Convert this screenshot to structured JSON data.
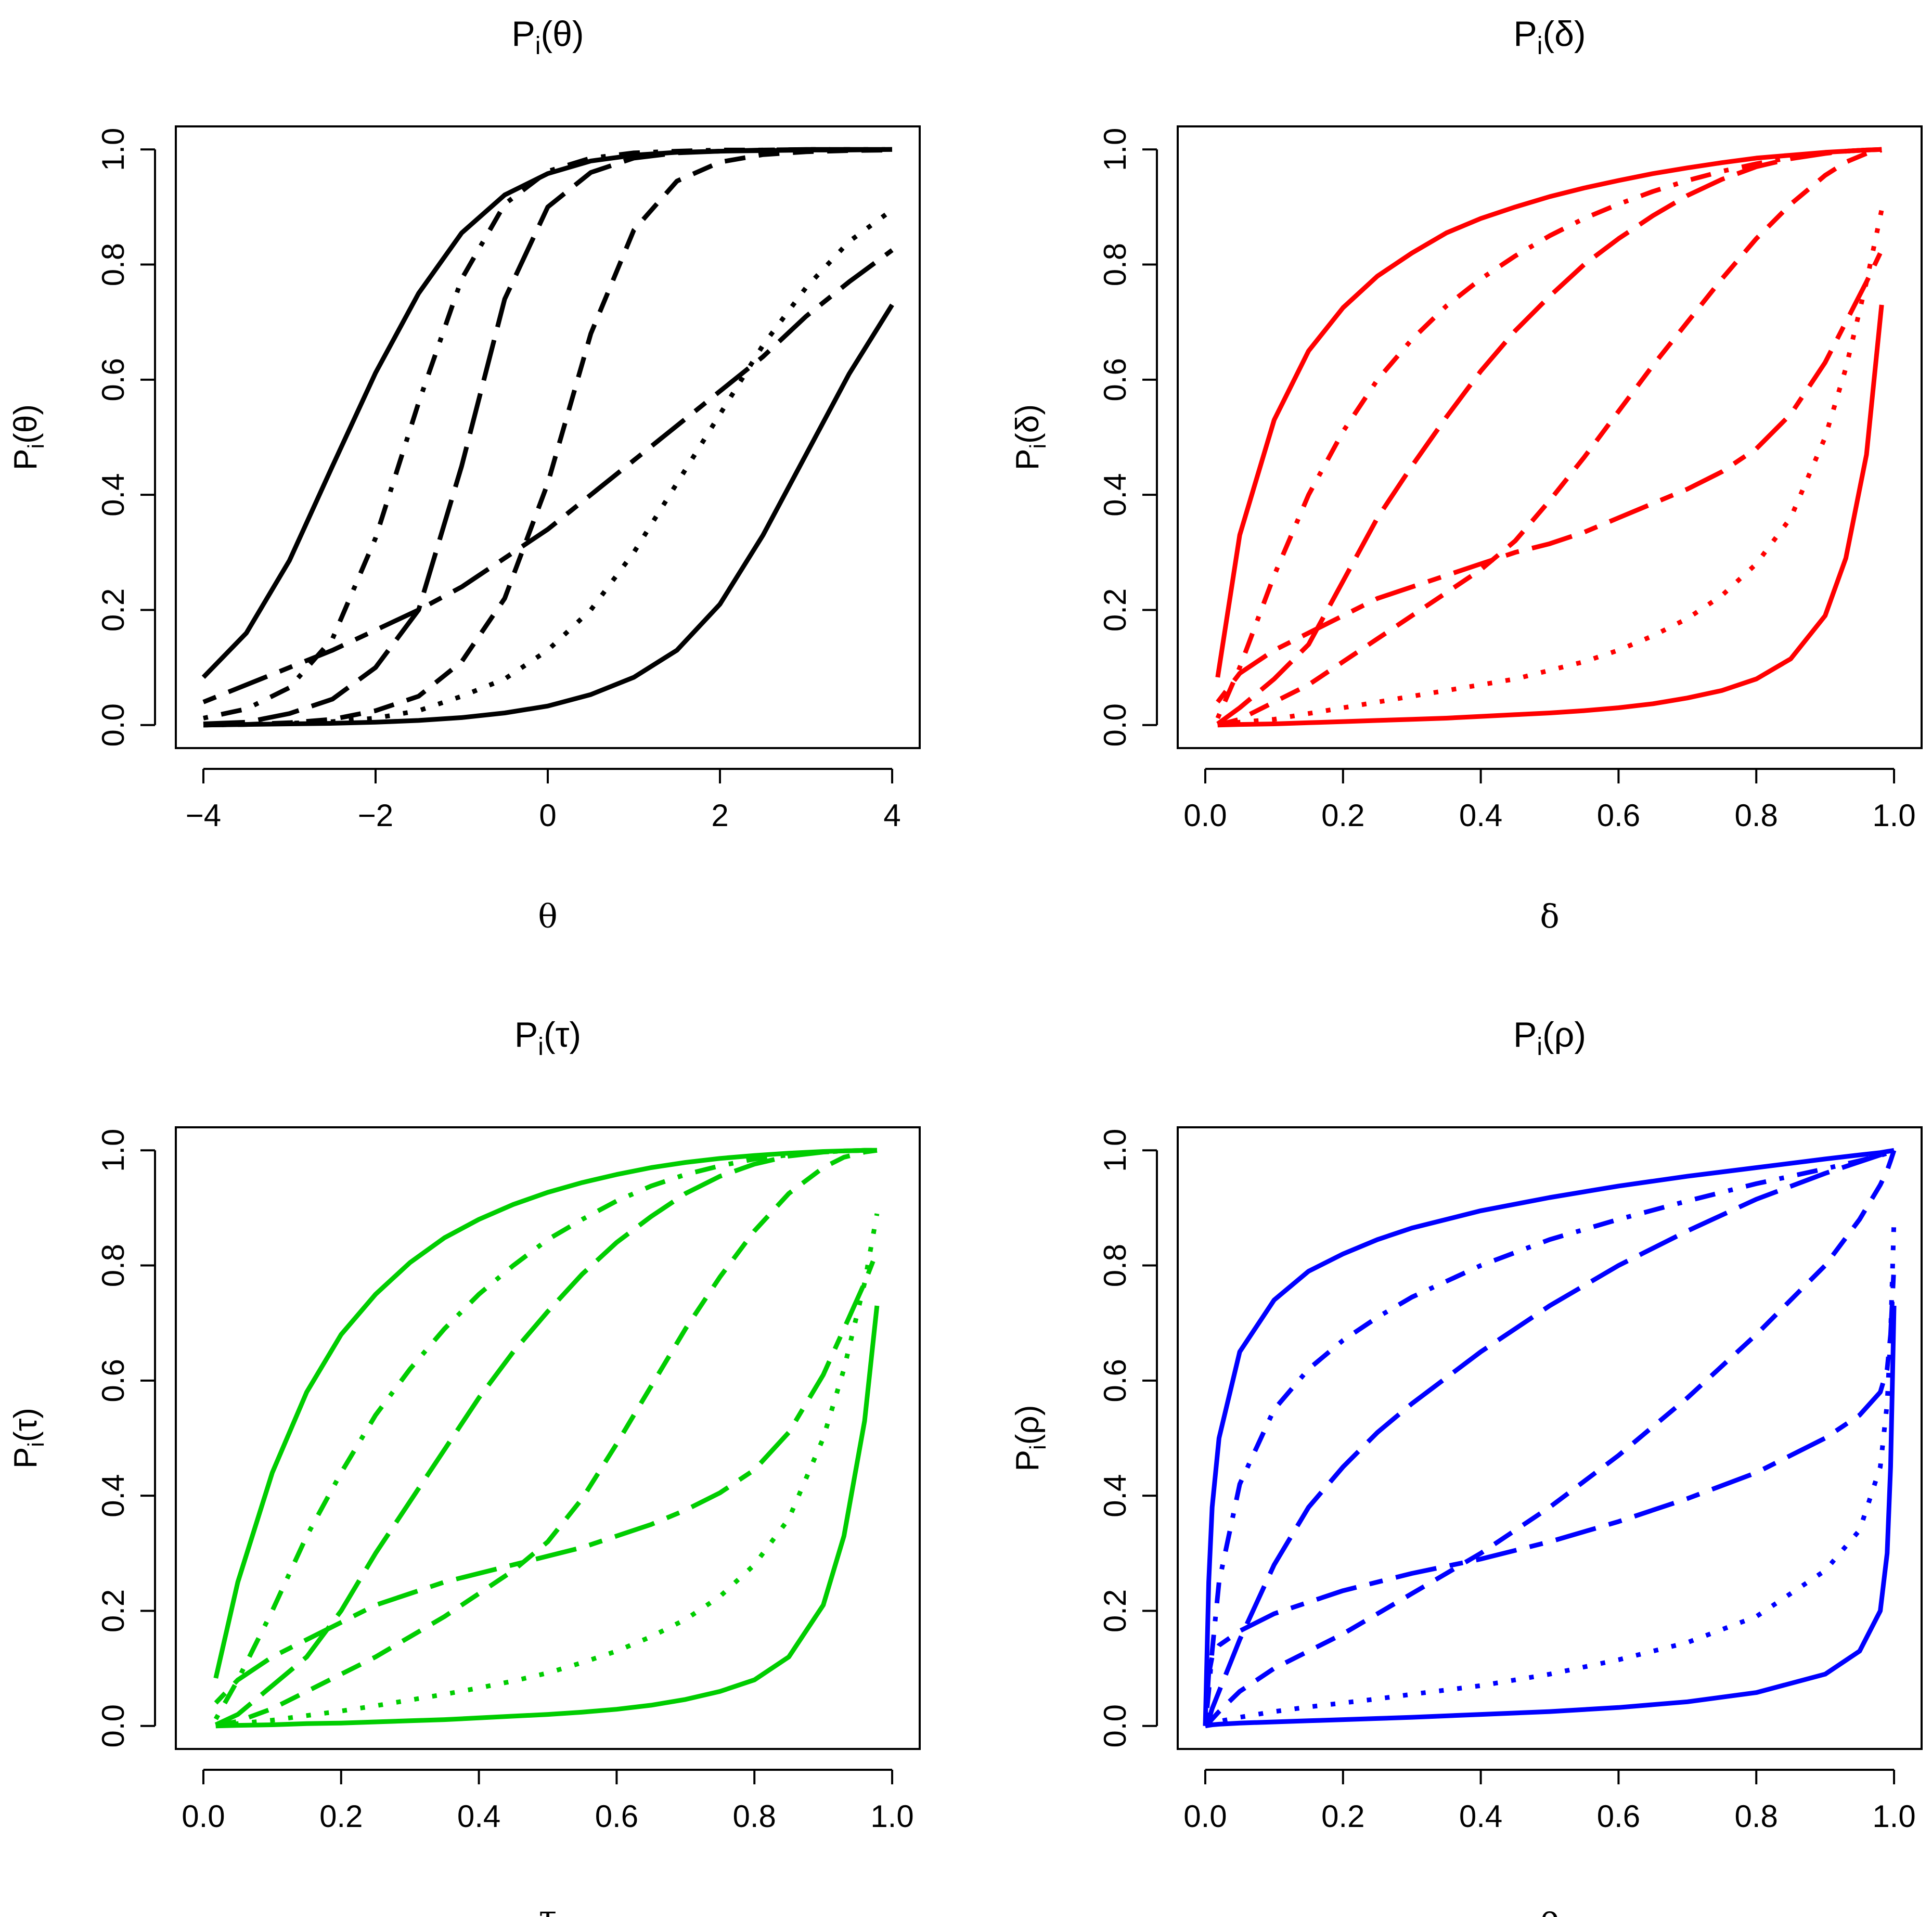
{
  "figure": {
    "layout": "2x2 grid of panels",
    "line_styles_legend_note": "Seven item characteristic curves per panel, distinguished by line type: solid (easy), dot-dash, long-dash, short-dash, two-dash, dotted, solid (hard)"
  },
  "chart_data": [
    {
      "id": "theta",
      "type": "line",
      "title_main": "P",
      "title_sub": "i",
      "title_arg": "(θ)",
      "ylabel_main": "P",
      "ylabel_sub": "i",
      "ylabel_arg": "(θ)",
      "xlabel": "θ",
      "color": "#000000",
      "xlim": [
        -4,
        4
      ],
      "ylim": [
        0,
        1
      ],
      "xticks": [
        -4,
        -2,
        0,
        2,
        4
      ],
      "xtick_labels": [
        "−4",
        "−2",
        "0",
        "2",
        "4"
      ],
      "yticks": [
        0,
        0.2,
        0.4,
        0.6,
        0.8,
        1.0
      ],
      "ytick_labels": [
        "0.0",
        "0.2",
        "0.4",
        "0.6",
        "0.8",
        "1.0"
      ],
      "grid": false,
      "x": [
        -4,
        -3.5,
        -3,
        -2.5,
        -2,
        -1.5,
        -1,
        -0.5,
        0,
        0.5,
        1,
        1.5,
        2,
        2.5,
        3,
        3.5,
        4
      ],
      "series": [
        {
          "name": "solid-easy",
          "dash": "solid",
          "values": [
            0.083,
            0.16,
            0.286,
            0.45,
            0.612,
            0.75,
            0.855,
            0.921,
            0.958,
            0.98,
            0.99,
            0.995,
            0.997,
            0.998,
            0.999,
            0.999,
            1.0
          ]
        },
        {
          "name": "dot-dash",
          "dash": "dotdash",
          "values": [
            0.012,
            0.028,
            0.065,
            0.15,
            0.325,
            0.56,
            0.775,
            0.905,
            0.962,
            0.985,
            0.994,
            0.997,
            0.999,
            0.999,
            1.0,
            1.0,
            1.0
          ]
        },
        {
          "name": "long-dash",
          "dash": "longdash",
          "values": [
            0.002,
            0.005,
            0.02,
            0.045,
            0.1,
            0.2,
            0.45,
            0.74,
            0.9,
            0.96,
            0.985,
            0.994,
            0.997,
            0.999,
            1.0,
            1.0,
            1.0
          ]
        },
        {
          "name": "short-dash",
          "dash": "dashed",
          "values": [
            0.0,
            0.001,
            0.004,
            0.01,
            0.025,
            0.05,
            0.11,
            0.22,
            0.42,
            0.68,
            0.86,
            0.945,
            0.978,
            0.991,
            0.996,
            0.998,
            0.999
          ]
        },
        {
          "name": "two-dash",
          "dash": "twodash",
          "values": [
            0.04,
            0.07,
            0.1,
            0.13,
            0.165,
            0.2,
            0.24,
            0.29,
            0.34,
            0.4,
            0.46,
            0.52,
            0.58,
            0.64,
            0.71,
            0.77,
            0.825
          ]
        },
        {
          "name": "dotted",
          "dash": "dotted",
          "values": [
            0.0,
            0.001,
            0.003,
            0.006,
            0.012,
            0.025,
            0.05,
            0.08,
            0.13,
            0.2,
            0.3,
            0.42,
            0.54,
            0.66,
            0.76,
            0.84,
            0.895
          ]
        },
        {
          "name": "solid-hard",
          "dash": "solid",
          "values": [
            0.0,
            0.001,
            0.002,
            0.003,
            0.005,
            0.008,
            0.013,
            0.021,
            0.033,
            0.053,
            0.083,
            0.13,
            0.21,
            0.33,
            0.47,
            0.61,
            0.73
          ]
        }
      ]
    },
    {
      "id": "delta",
      "type": "line",
      "title_main": "P",
      "title_sub": "i",
      "title_arg": "(δ)",
      "ylabel_main": "P",
      "ylabel_sub": "i",
      "ylabel_arg": "(δ)",
      "xlabel": "δ",
      "color": "#ff0000",
      "xlim": [
        0,
        1
      ],
      "ylim": [
        0,
        1
      ],
      "xticks": [
        0,
        0.2,
        0.4,
        0.6,
        0.8,
        1.0
      ],
      "xtick_labels": [
        "0.0",
        "0.2",
        "0.4",
        "0.6",
        "0.8",
        "1.0"
      ],
      "yticks": [
        0,
        0.2,
        0.4,
        0.6,
        0.8,
        1.0
      ],
      "ytick_labels": [
        "0.0",
        "0.2",
        "0.4",
        "0.6",
        "0.8",
        "1.0"
      ],
      "grid": false,
      "x": [
        0.018,
        0.05,
        0.1,
        0.15,
        0.2,
        0.25,
        0.3,
        0.35,
        0.4,
        0.45,
        0.5,
        0.55,
        0.6,
        0.65,
        0.7,
        0.75,
        0.8,
        0.85,
        0.9,
        0.93,
        0.96,
        0.982
      ],
      "series": [
        {
          "name": "solid-easy",
          "dash": "solid",
          "values": [
            0.083,
            0.33,
            0.53,
            0.65,
            0.725,
            0.78,
            0.82,
            0.855,
            0.88,
            0.9,
            0.918,
            0.933,
            0.946,
            0.958,
            0.968,
            0.977,
            0.985,
            0.99,
            0.995,
            0.997,
            0.999,
            1.0
          ]
        },
        {
          "name": "dot-dash",
          "dash": "dotdash",
          "values": [
            0.012,
            0.1,
            0.26,
            0.4,
            0.51,
            0.6,
            0.67,
            0.728,
            0.775,
            0.815,
            0.85,
            0.88,
            0.905,
            0.927,
            0.946,
            0.962,
            0.975,
            0.986,
            0.994,
            0.997,
            0.999,
            1.0
          ]
        },
        {
          "name": "long-dash",
          "dash": "longdash",
          "values": [
            0.002,
            0.03,
            0.08,
            0.14,
            0.25,
            0.36,
            0.45,
            0.535,
            0.615,
            0.685,
            0.745,
            0.8,
            0.845,
            0.885,
            0.92,
            0.948,
            0.97,
            0.984,
            0.993,
            0.997,
            0.999,
            1.0
          ]
        },
        {
          "name": "short-dash",
          "dash": "dashed",
          "values": [
            0.0,
            0.01,
            0.04,
            0.07,
            0.11,
            0.15,
            0.19,
            0.23,
            0.27,
            0.32,
            0.39,
            0.465,
            0.545,
            0.625,
            0.7,
            0.775,
            0.845,
            0.905,
            0.955,
            0.978,
            0.993,
            0.999
          ]
        },
        {
          "name": "two-dash",
          "dash": "twodash",
          "values": [
            0.04,
            0.09,
            0.13,
            0.16,
            0.19,
            0.22,
            0.24,
            0.26,
            0.28,
            0.3,
            0.315,
            0.335,
            0.36,
            0.385,
            0.41,
            0.44,
            0.48,
            0.54,
            0.63,
            0.7,
            0.77,
            0.825
          ]
        },
        {
          "name": "dotted",
          "dash": "dotted",
          "values": [
            0.0,
            0.005,
            0.01,
            0.02,
            0.03,
            0.04,
            0.05,
            0.06,
            0.07,
            0.08,
            0.095,
            0.11,
            0.13,
            0.155,
            0.185,
            0.225,
            0.28,
            0.36,
            0.5,
            0.62,
            0.77,
            0.895
          ]
        },
        {
          "name": "solid-hard",
          "dash": "solid",
          "values": [
            0.0,
            0.001,
            0.002,
            0.004,
            0.006,
            0.008,
            0.01,
            0.012,
            0.015,
            0.018,
            0.021,
            0.025,
            0.03,
            0.037,
            0.047,
            0.06,
            0.08,
            0.115,
            0.19,
            0.29,
            0.47,
            0.73
          ]
        }
      ]
    },
    {
      "id": "tau",
      "type": "line",
      "title_main": "P",
      "title_sub": "i",
      "title_arg": "(τ)",
      "ylabel_main": "P",
      "ylabel_sub": "i",
      "ylabel_arg": "(τ)",
      "xlabel": "τ",
      "color": "#00cd00",
      "xlim": [
        0,
        1
      ],
      "ylim": [
        0,
        1
      ],
      "xticks": [
        0,
        0.2,
        0.4,
        0.6,
        0.8,
        1.0
      ],
      "xtick_labels": [
        "0.0",
        "0.2",
        "0.4",
        "0.6",
        "0.8",
        "1.0"
      ],
      "yticks": [
        0,
        0.2,
        0.4,
        0.6,
        0.8,
        1.0
      ],
      "ytick_labels": [
        "0.0",
        "0.2",
        "0.4",
        "0.6",
        "0.8",
        "1.0"
      ],
      "grid": false,
      "x": [
        0.018,
        0.05,
        0.1,
        0.15,
        0.2,
        0.25,
        0.3,
        0.35,
        0.4,
        0.45,
        0.5,
        0.55,
        0.6,
        0.65,
        0.7,
        0.75,
        0.8,
        0.85,
        0.9,
        0.93,
        0.96,
        0.978
      ],
      "series": [
        {
          "name": "solid-easy",
          "dash": "solid",
          "values": [
            0.083,
            0.25,
            0.44,
            0.58,
            0.68,
            0.75,
            0.805,
            0.848,
            0.88,
            0.906,
            0.927,
            0.944,
            0.958,
            0.97,
            0.979,
            0.986,
            0.991,
            0.995,
            0.998,
            0.999,
            1.0,
            1.0
          ]
        },
        {
          "name": "dot-dash",
          "dash": "dotdash",
          "values": [
            0.012,
            0.08,
            0.2,
            0.33,
            0.44,
            0.54,
            0.62,
            0.69,
            0.75,
            0.8,
            0.845,
            0.88,
            0.912,
            0.938,
            0.958,
            0.973,
            0.985,
            0.992,
            0.997,
            0.999,
            1.0,
            1.0
          ]
        },
        {
          "name": "long-dash",
          "dash": "longdash",
          "values": [
            0.002,
            0.02,
            0.07,
            0.12,
            0.2,
            0.3,
            0.39,
            0.48,
            0.57,
            0.65,
            0.72,
            0.785,
            0.84,
            0.885,
            0.925,
            0.955,
            0.976,
            0.99,
            0.997,
            0.999,
            1.0,
            1.0
          ]
        },
        {
          "name": "short-dash",
          "dash": "dashed",
          "values": [
            0.0,
            0.008,
            0.03,
            0.06,
            0.09,
            0.12,
            0.155,
            0.19,
            0.23,
            0.27,
            0.32,
            0.395,
            0.49,
            0.59,
            0.69,
            0.78,
            0.86,
            0.925,
            0.97,
            0.988,
            0.997,
            1.0
          ]
        },
        {
          "name": "two-dash",
          "dash": "twodash",
          "values": [
            0.04,
            0.08,
            0.12,
            0.15,
            0.18,
            0.21,
            0.23,
            0.25,
            0.265,
            0.28,
            0.295,
            0.31,
            0.33,
            0.35,
            0.375,
            0.405,
            0.445,
            0.51,
            0.61,
            0.69,
            0.77,
            0.825
          ]
        },
        {
          "name": "dotted",
          "dash": "dotted",
          "values": [
            0.0,
            0.004,
            0.01,
            0.018,
            0.026,
            0.035,
            0.045,
            0.055,
            0.066,
            0.078,
            0.092,
            0.11,
            0.13,
            0.155,
            0.185,
            0.225,
            0.28,
            0.36,
            0.5,
            0.62,
            0.77,
            0.89
          ]
        },
        {
          "name": "solid-hard",
          "dash": "solid",
          "values": [
            0.0,
            0.001,
            0.002,
            0.004,
            0.005,
            0.007,
            0.009,
            0.011,
            0.014,
            0.017,
            0.02,
            0.024,
            0.029,
            0.036,
            0.046,
            0.06,
            0.08,
            0.12,
            0.21,
            0.33,
            0.53,
            0.73
          ]
        }
      ]
    },
    {
      "id": "rho",
      "type": "line",
      "title_main": "P",
      "title_sub": "i",
      "title_arg": "(ρ)",
      "ylabel_main": "P",
      "ylabel_sub": "i",
      "ylabel_arg": "(ρ)",
      "xlabel": "ρ",
      "color": "#0000ff",
      "xlim": [
        0,
        1
      ],
      "ylim": [
        0,
        1
      ],
      "xticks": [
        0,
        0.2,
        0.4,
        0.6,
        0.8,
        1.0
      ],
      "xtick_labels": [
        "0.0",
        "0.2",
        "0.4",
        "0.6",
        "0.8",
        "1.0"
      ],
      "yticks": [
        0,
        0.2,
        0.4,
        0.6,
        0.8,
        1.0
      ],
      "ytick_labels": [
        "0.0",
        "0.2",
        "0.4",
        "0.6",
        "0.8",
        "1.0"
      ],
      "grid": false,
      "x": [
        0.0,
        0.005,
        0.01,
        0.02,
        0.05,
        0.1,
        0.15,
        0.2,
        0.25,
        0.3,
        0.4,
        0.5,
        0.6,
        0.7,
        0.8,
        0.9,
        0.95,
        0.98,
        0.99,
        0.995,
        1.0
      ],
      "series": [
        {
          "name": "solid-easy",
          "dash": "solid",
          "values": [
            0.0,
            0.25,
            0.38,
            0.5,
            0.65,
            0.74,
            0.79,
            0.82,
            0.845,
            0.865,
            0.895,
            0.918,
            0.938,
            0.955,
            0.97,
            0.985,
            0.992,
            0.996,
            0.998,
            0.999,
            1.0
          ]
        },
        {
          "name": "dot-dash",
          "dash": "dotdash",
          "values": [
            0.0,
            0.06,
            0.13,
            0.25,
            0.42,
            0.55,
            0.62,
            0.67,
            0.71,
            0.745,
            0.8,
            0.845,
            0.88,
            0.912,
            0.942,
            0.968,
            0.982,
            0.991,
            0.995,
            0.998,
            1.0
          ]
        },
        {
          "name": "long-dash",
          "dash": "longdash",
          "values": [
            0.0,
            0.01,
            0.03,
            0.06,
            0.15,
            0.28,
            0.38,
            0.45,
            0.51,
            0.56,
            0.65,
            0.73,
            0.8,
            0.86,
            0.915,
            0.96,
            0.98,
            0.992,
            0.996,
            0.998,
            1.0
          ]
        },
        {
          "name": "short-dash",
          "dash": "dashed",
          "values": [
            0.0,
            0.005,
            0.012,
            0.025,
            0.06,
            0.1,
            0.13,
            0.16,
            0.195,
            0.23,
            0.3,
            0.38,
            0.47,
            0.57,
            0.68,
            0.8,
            0.88,
            0.94,
            0.965,
            0.982,
            1.0
          ]
        },
        {
          "name": "two-dash",
          "dash": "twodash",
          "values": [
            0.0,
            0.09,
            0.12,
            0.14,
            0.165,
            0.195,
            0.215,
            0.235,
            0.25,
            0.265,
            0.29,
            0.32,
            0.355,
            0.395,
            0.44,
            0.5,
            0.54,
            0.58,
            0.62,
            0.68,
            0.8
          ]
        },
        {
          "name": "dotted",
          "dash": "dotted",
          "values": [
            0.0,
            0.002,
            0.004,
            0.008,
            0.015,
            0.025,
            0.033,
            0.04,
            0.047,
            0.055,
            0.07,
            0.09,
            0.115,
            0.145,
            0.19,
            0.27,
            0.34,
            0.45,
            0.56,
            0.68,
            0.88
          ]
        },
        {
          "name": "solid-hard",
          "dash": "solid",
          "values": [
            0.0,
            0.001,
            0.002,
            0.003,
            0.005,
            0.007,
            0.009,
            0.011,
            0.013,
            0.015,
            0.02,
            0.025,
            0.032,
            0.042,
            0.058,
            0.09,
            0.13,
            0.2,
            0.3,
            0.45,
            0.73
          ]
        }
      ]
    }
  ]
}
